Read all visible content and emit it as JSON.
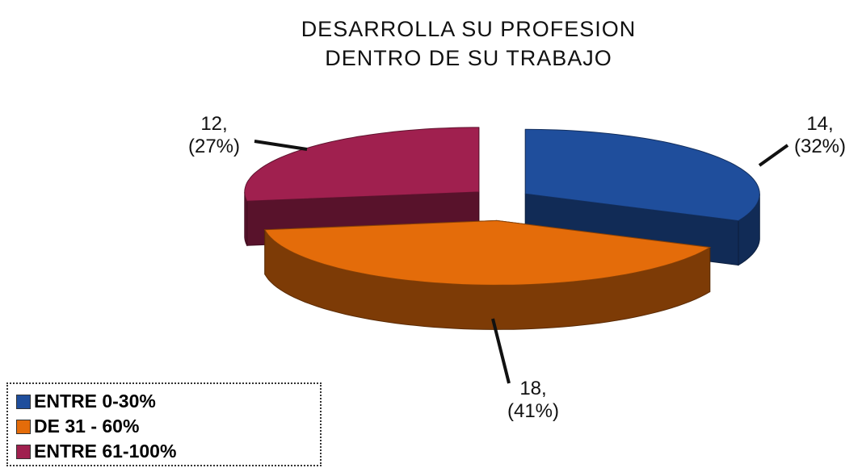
{
  "chart_data": {
    "type": "pie3d",
    "title": "DESARROLLA SU PROFESION\nDENTRO DE SU TRABAJO",
    "categories": [
      "ENTRE 0-30%",
      "DE 31 - 60%",
      "ENTRE 61-100%"
    ],
    "values": [
      14,
      18,
      12
    ],
    "value_labels": [
      "14,\n(32%)",
      "18,\n(41%)",
      "12,\n(27%)"
    ],
    "colors": [
      "#1f4e9c",
      "#e46c0a",
      "#a0204f"
    ],
    "legend": "bottom-left"
  }
}
